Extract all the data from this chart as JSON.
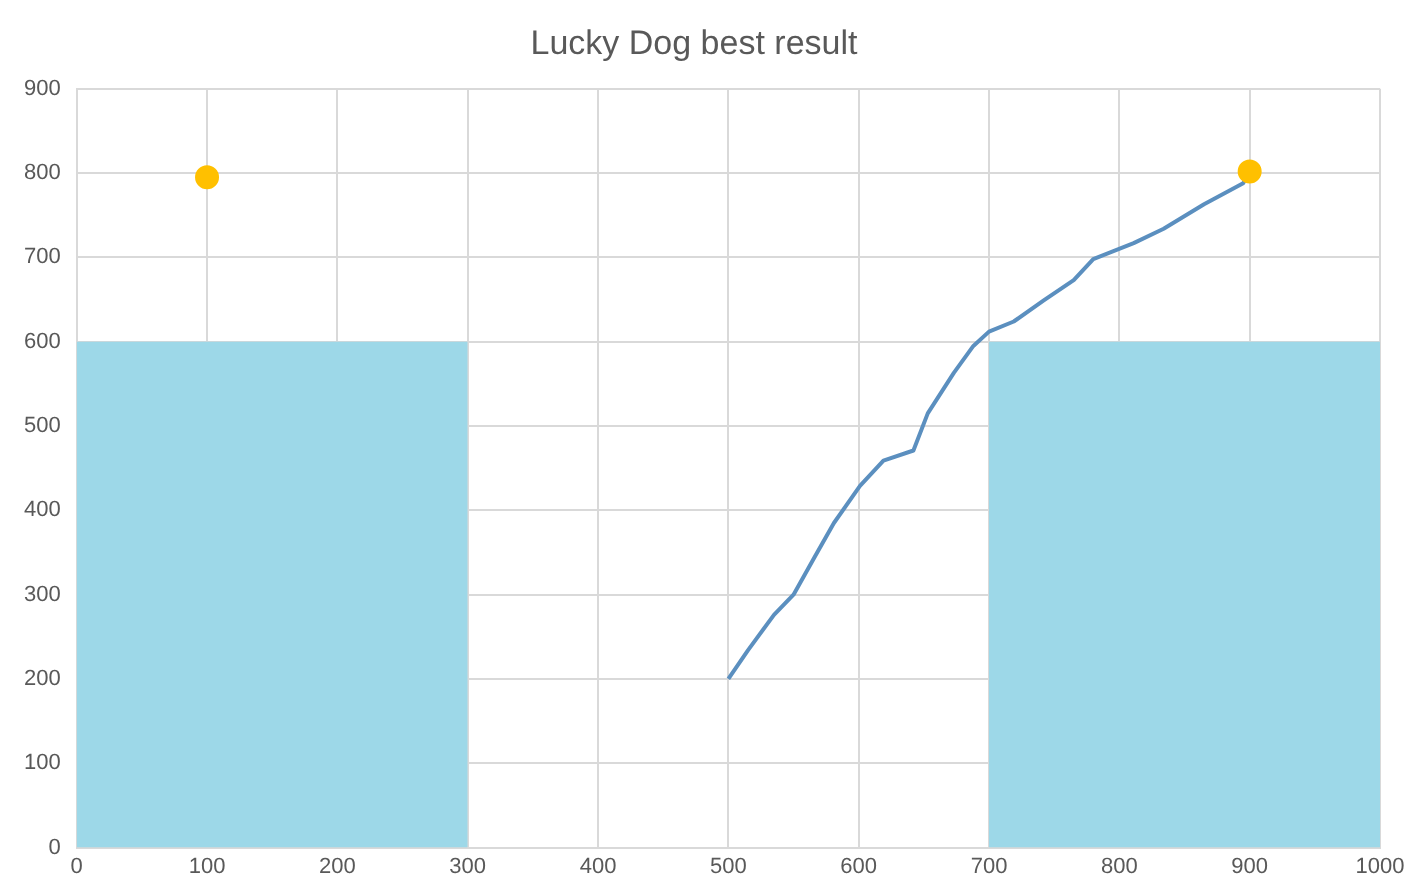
{
  "chart_data": {
    "type": "line",
    "title": "Lucky Dog best result",
    "xlim": [
      0,
      1000
    ],
    "xticks": [
      0,
      100,
      200,
      300,
      400,
      500,
      600,
      700,
      800,
      900,
      1000
    ],
    "ylim": [
      0,
      900
    ],
    "yticks": [
      0,
      100,
      200,
      300,
      400,
      500,
      600,
      700,
      800,
      900
    ],
    "grid": true,
    "legend": false,
    "series": [
      {
        "type": "area",
        "color": "#9dd8e8",
        "x": [
          0,
          300
        ],
        "values": [
          600,
          600
        ]
      },
      {
        "type": "area",
        "color": "#9dd8e8",
        "x": [
          700,
          1000
        ],
        "values": [
          600,
          600
        ]
      },
      {
        "type": "line",
        "color": "#5b8fbf",
        "marker": "none",
        "x": [
          500,
          515,
          535,
          550,
          566,
          581,
          601,
          619,
          642,
          653,
          673,
          688,
          700,
          719,
          742,
          765,
          780,
          811,
          834,
          865,
          895,
          900
        ],
        "values": [
          200,
          234,
          276,
          300,
          344,
          385,
          429,
          459,
          471,
          515,
          563,
          595,
          612,
          624,
          649,
          673,
          698,
          717,
          734,
          763,
          788,
          800
        ]
      },
      {
        "type": "scatter",
        "color": "#ffc000",
        "marker": "circle",
        "x": [
          100,
          900
        ],
        "values": [
          795,
          802
        ]
      }
    ]
  }
}
